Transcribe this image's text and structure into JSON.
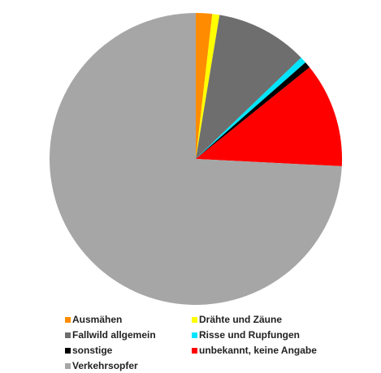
{
  "chart_data": {
    "type": "pie",
    "title": "",
    "start_angle_deg": 0,
    "direction": "clockwise",
    "legend_position": "bottom",
    "series": [
      {
        "name": "Ausmähen",
        "value": 1.8,
        "color": "#ff8c00"
      },
      {
        "name": "Drähte und Zäune",
        "value": 0.8,
        "color": "#ffff00"
      },
      {
        "name": "Fallwild allgemein",
        "value": 10.2,
        "color": "#6e6e6e"
      },
      {
        "name": "Risse und Rupfungen",
        "value": 0.7,
        "color": "#00e5ff"
      },
      {
        "name": "sonstige",
        "value": 0.7,
        "color": "#000000"
      },
      {
        "name": "unbekannt, keine Angabe",
        "value": 11.6,
        "color": "#ff0000"
      },
      {
        "name": "Verkehrsopfer",
        "value": 74.2,
        "color": "#a6a6a6"
      }
    ]
  }
}
